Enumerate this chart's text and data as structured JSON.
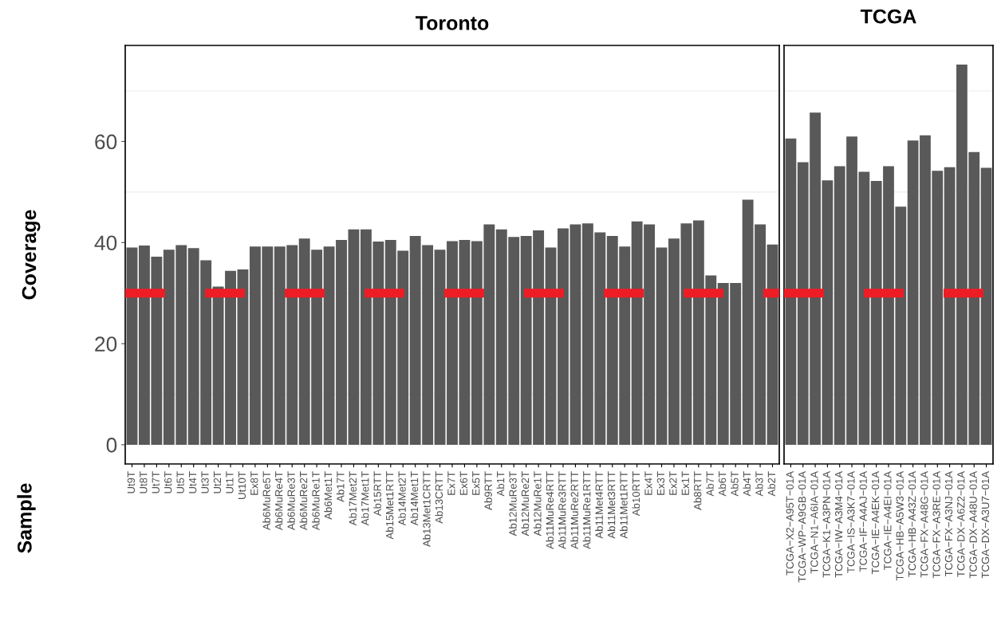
{
  "chart_data": [
    {
      "type": "bar",
      "title": "Toronto",
      "ylabel": "Coverage",
      "annotations": [
        "Sample"
      ],
      "categories": [
        "Ut9T",
        "Ut8T",
        "Ut7T",
        "Ut6T",
        "Ut5T",
        "Ut4T",
        "Ut3T",
        "Ut2T",
        "Ut1T",
        "Ut10T",
        "Ex8T",
        "Ab6MuRe5T",
        "Ab6MuRe4T",
        "Ab6MuRe3T",
        "Ab6MuRe2T",
        "Ab6MuRe1T",
        "Ab6Met1T",
        "Ab17T",
        "Ab17Met2T",
        "Ab17Met1T",
        "Ab15RTT",
        "Ab15Met1RTT",
        "Ab14Met2T",
        "Ab14Met1T",
        "Ab13Met1CRTT",
        "Ab13CRTT",
        "Ex7T",
        "Ex6T",
        "Ex5T",
        "Ab9RTT",
        "Ab1T",
        "Ab12MuRe3T",
        "Ab12MuRe2T",
        "Ab12MuRe1T",
        "Ab11MuRe4RTT",
        "Ab11MuRe3RTT",
        "Ab11MuRe2RTT",
        "Ab11MuRe1RTT",
        "Ab11Met4RTT",
        "Ab11Met3RTT",
        "Ab11Met1RTT",
        "Ab10RTT",
        "Ex4T",
        "Ex3T",
        "Ex2T",
        "Ex1T",
        "Ab8RTT",
        "Ab7T",
        "Ab6T",
        "Ab5T",
        "Ab4T",
        "Ab3T",
        "Ab2T"
      ],
      "values": [
        39.0,
        39.4,
        37.2,
        38.6,
        39.5,
        38.9,
        36.5,
        31.3,
        34.4,
        34.7,
        39.2,
        39.2,
        39.2,
        39.5,
        40.8,
        38.6,
        39.2,
        40.5,
        42.6,
        42.6,
        40.2,
        40.5,
        38.4,
        41.3,
        39.5,
        38.6,
        40.3,
        40.5,
        40.3,
        43.6,
        42.6,
        41.1,
        41.3,
        42.4,
        39.0,
        42.8,
        43.6,
        43.8,
        42.0,
        41.3,
        39.2,
        44.2,
        43.6,
        39.0,
        40.8,
        43.8,
        44.4,
        33.5,
        32.0,
        32.0,
        48.5,
        43.6,
        39.6
      ],
      "color": "#595959",
      "ylim": [
        -3.8,
        79.0
      ],
      "yticks": [
        0,
        20,
        40,
        60
      ],
      "grid": "y",
      "ref_lines": [
        {
          "axis": "y",
          "value": 30,
          "color": "#ee1c25",
          "line_style": "dashed"
        }
      ]
    },
    {
      "type": "bar",
      "title": "TCGA",
      "categories": [
        "TCGA−X2−A95T−01A",
        "TCGA−WP−A9GB−01A",
        "TCGA−N1−A6IA−01A",
        "TCGA−K1−A3PN−01A",
        "TCGA−IW−A3M4−01A",
        "TCGA−IS−A3K7−01A",
        "TCGA−IF−A4AJ−01A",
        "TCGA−IE−A4EK−01A",
        "TCGA−IE−A4EI−01A",
        "TCGA−HB−A5W3−01A",
        "TCGA−HB−A43Z−01A",
        "TCGA−FX−A48G−01A",
        "TCGA−FX−A3RE−01A",
        "TCGA−FX−A3NJ−01A",
        "TCGA−DX−A6Z2−01A",
        "TCGA−DX−A48U−01A",
        "TCGA−DX−A3U7−01A"
      ],
      "values": [
        60.6,
        55.9,
        65.7,
        52.3,
        55.1,
        61.0,
        54.0,
        52.2,
        55.1,
        47.1,
        60.2,
        61.2,
        54.2,
        54.9,
        75.2,
        57.9,
        54.8
      ],
      "color": "#595959",
      "ylim": [
        -3.8,
        79.0
      ],
      "yticks": [
        0,
        20,
        40,
        60
      ],
      "grid": "y",
      "tick_labels": "x",
      "ref_lines": [
        {
          "axis": "y",
          "value": 30,
          "color": "#ee1c25",
          "line_style": "dashed"
        }
      ]
    }
  ]
}
